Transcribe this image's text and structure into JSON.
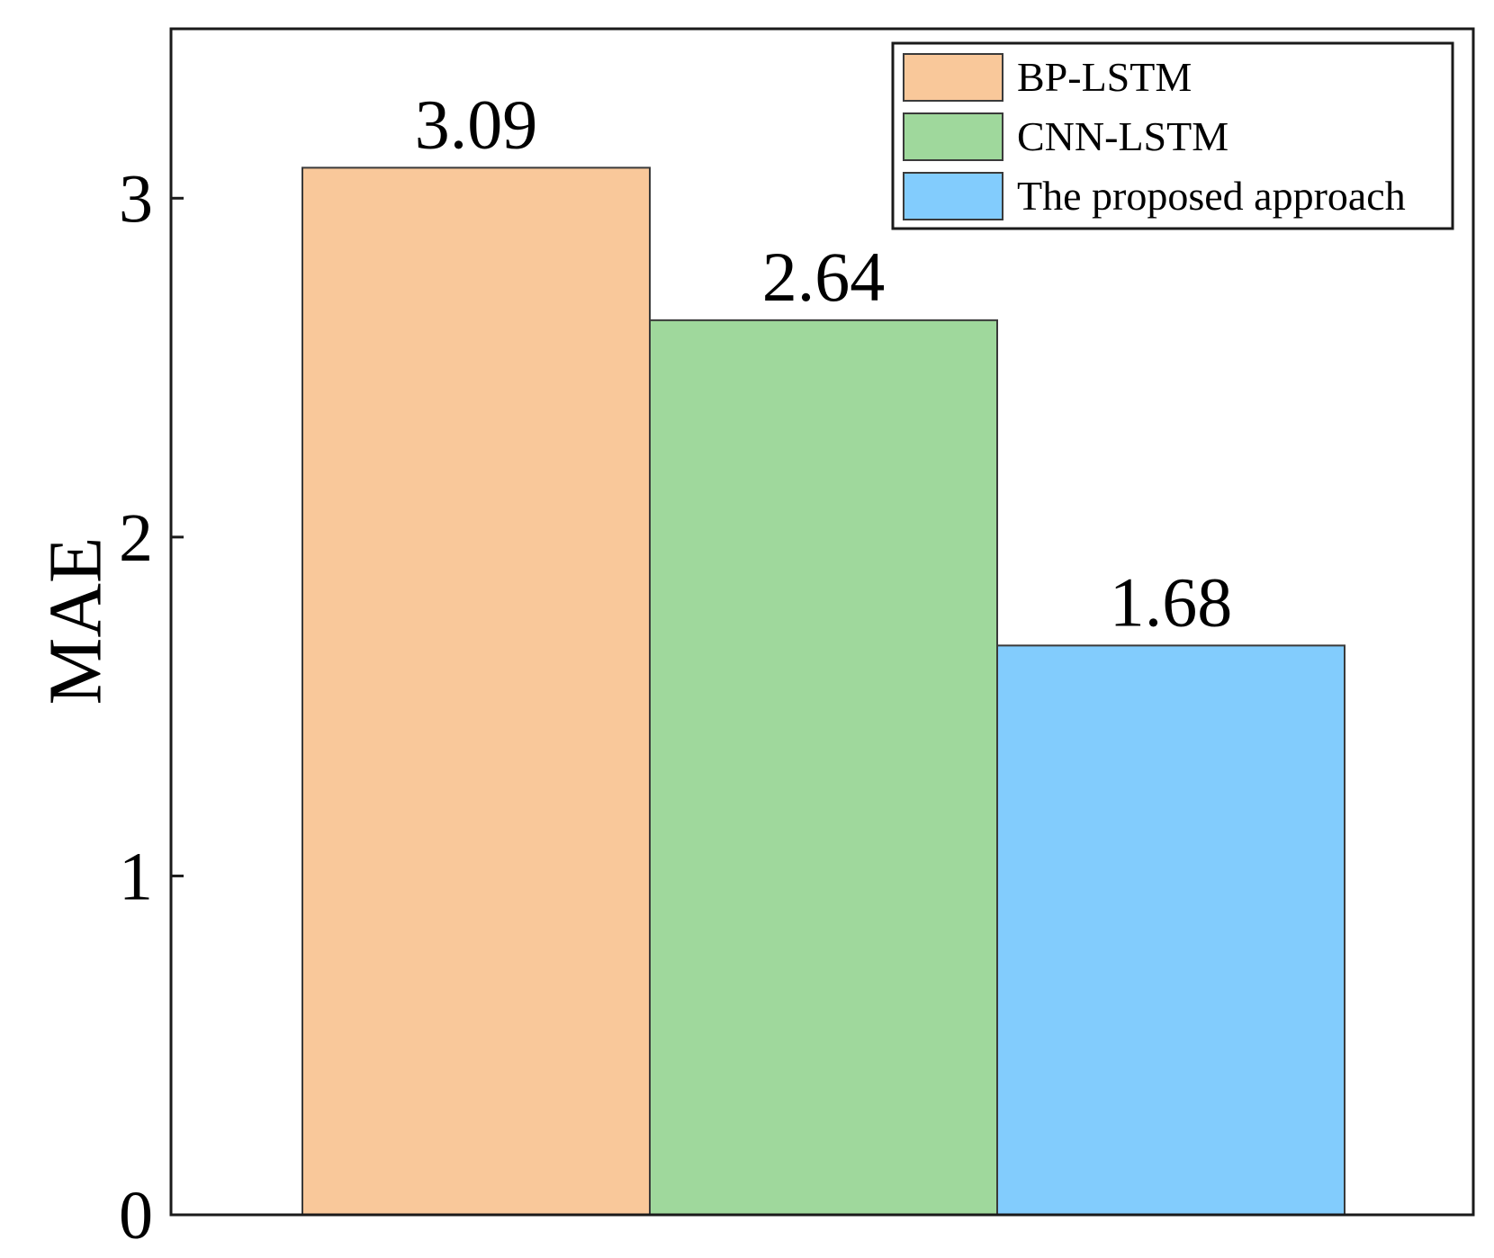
{
  "chart_data": {
    "type": "bar",
    "title": "",
    "xlabel": "",
    "ylabel": "MAE",
    "ylim": [
      0,
      3.5
    ],
    "yticks": [
      0,
      1,
      2,
      3
    ],
    "series": [
      {
        "name": "BP-LSTM",
        "value": 3.09,
        "value_label": "3.09",
        "color": "#f9c89a"
      },
      {
        "name": "CNN-LSTM",
        "value": 2.64,
        "value_label": "2.64",
        "color": "#9fd89c"
      },
      {
        "name": "The proposed approach",
        "value": 1.68,
        "value_label": "1.68",
        "color": "#82ccfd"
      }
    ],
    "legend_position": "top-right",
    "grid": false
  }
}
